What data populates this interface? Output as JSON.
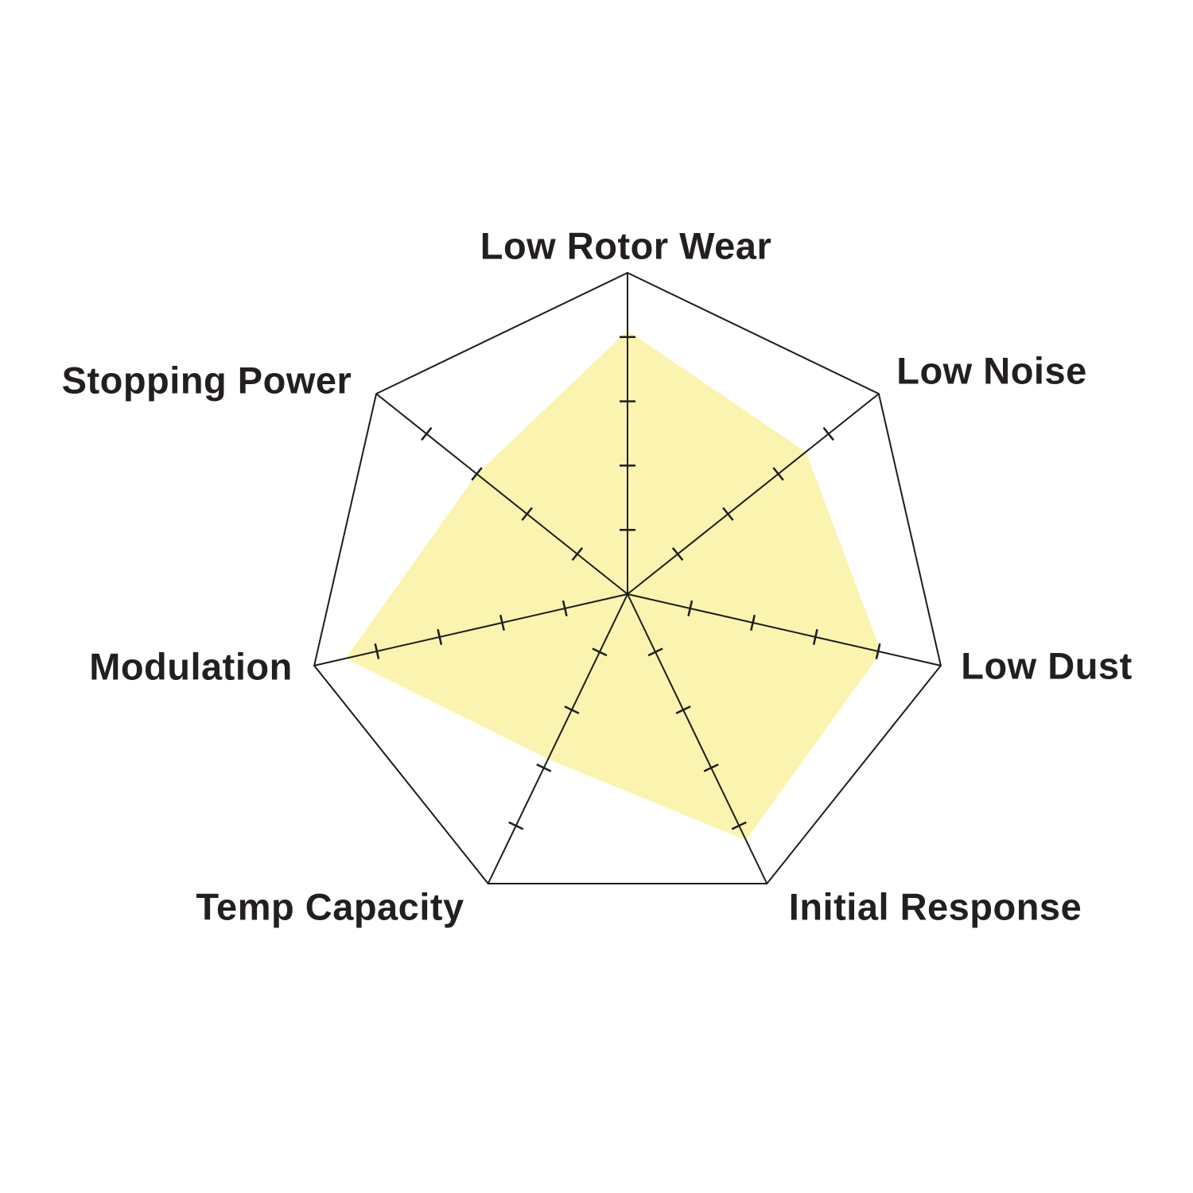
{
  "chart_data": {
    "type": "radar",
    "title": "",
    "categories": [
      "Low Rotor Wear",
      "Low Noise",
      "Low Dust",
      "Initial Response",
      "Temp Capacity",
      "Modulation",
      "Stopping Power"
    ],
    "values": [
      8.2,
      7.1,
      8.1,
      8.5,
      5.7,
      9.0,
      6.0
    ],
    "ylim": [
      0,
      10
    ],
    "tick_values": [
      2,
      4,
      6,
      8
    ],
    "grid": "radial axes with cross ticks, single outer heptagon ring",
    "legend": "none",
    "colors": {
      "fill": "#F7E64F",
      "fill_opacity": "0.45",
      "line": "#1D1D1B",
      "label": "#231F20",
      "background": "#FFFFFF"
    }
  }
}
